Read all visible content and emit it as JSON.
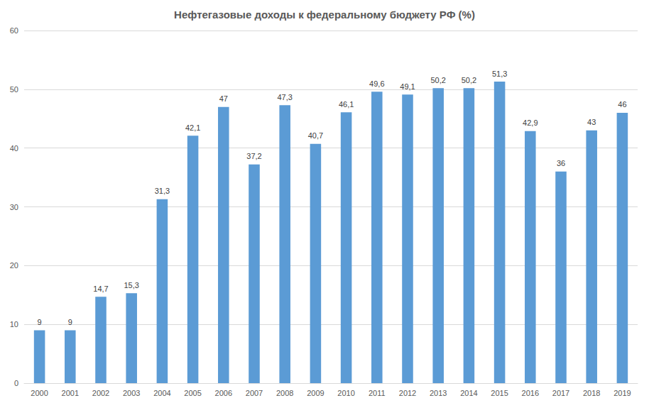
{
  "chart_data": {
    "type": "bar",
    "title": "Нефтегазовые доходы к федеральному бюджету РФ (%)",
    "categories": [
      "2000",
      "2001",
      "2002",
      "2003",
      "2004",
      "2005",
      "2006",
      "2007",
      "2008",
      "2009",
      "2010",
      "2011",
      "2012",
      "2013",
      "2014",
      "2015",
      "2016",
      "2017",
      "2018",
      "2019"
    ],
    "values": [
      9,
      9,
      14.7,
      15.3,
      31.3,
      42.1,
      47,
      37.2,
      47.3,
      40.7,
      46.1,
      49.6,
      49.1,
      50.2,
      50.2,
      51.3,
      42.9,
      36,
      43,
      46
    ],
    "value_labels": [
      "9",
      "9",
      "14,7",
      "15,3",
      "31,3",
      "42,1",
      "47",
      "37,2",
      "47,3",
      "40,7",
      "46,1",
      "49,6",
      "49,1",
      "50,2",
      "50,2",
      "51,3",
      "42,9",
      "36",
      "43",
      "46"
    ],
    "color": "#5b9bd5",
    "ylim": [
      0,
      60
    ],
    "yticks": [
      0,
      10,
      20,
      30,
      40,
      50,
      60
    ],
    "grid": true,
    "data_labels": true
  }
}
